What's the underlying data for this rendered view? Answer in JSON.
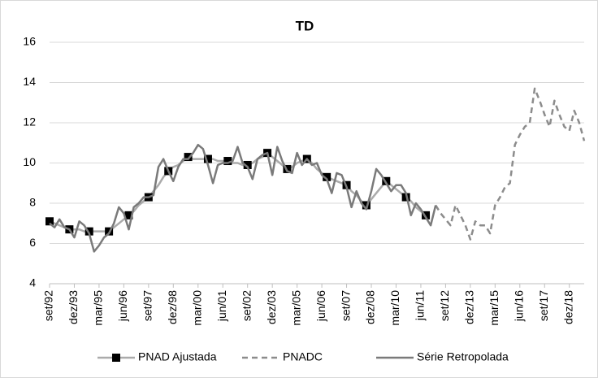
{
  "chart_data": {
    "type": "line",
    "title": "TD",
    "categories": [
      "set/92",
      null,
      null,
      null,
      null,
      "dez/93",
      null,
      null,
      null,
      null,
      "mar/95",
      null,
      null,
      null,
      null,
      "jun/96",
      null,
      null,
      null,
      null,
      "set/97",
      null,
      null,
      null,
      null,
      "dez/98",
      null,
      null,
      null,
      null,
      "mar/00",
      null,
      null,
      null,
      null,
      "jun/01",
      null,
      null,
      null,
      null,
      "set/02",
      null,
      null,
      null,
      null,
      "dez/03",
      null,
      null,
      null,
      null,
      "mar/05",
      null,
      null,
      null,
      null,
      "jun/06",
      null,
      null,
      null,
      null,
      "set/07",
      null,
      null,
      null,
      null,
      "dez/08",
      null,
      null,
      null,
      null,
      "mar/10",
      null,
      null,
      null,
      null,
      "jun/11",
      null,
      null,
      null,
      null,
      "set/12",
      null,
      null,
      null,
      null,
      "dez/13",
      null,
      null,
      null,
      null,
      "mar/15",
      null,
      null,
      null,
      null,
      "jun/16",
      null,
      null,
      null,
      null,
      "set/17",
      null,
      null,
      null,
      null,
      "dez/18",
      null,
      null,
      null
    ],
    "series": [
      {
        "name": "PNAD Ajustada",
        "color": "#ababab",
        "marker": "square",
        "marker_color": "#000000",
        "values": [
          7.1,
          7.0,
          6.9,
          6.8,
          6.7,
          6.7,
          6.7,
          6.6,
          6.6,
          6.6,
          6.6,
          6.6,
          6.6,
          6.8,
          7.0,
          7.2,
          7.4,
          7.6,
          7.9,
          8.1,
          8.3,
          8.6,
          8.9,
          9.3,
          9.6,
          9.8,
          9.9,
          10.1,
          10.3,
          10.2,
          10.2,
          10.2,
          10.2,
          10.2,
          10.1,
          10.1,
          10.1,
          10.0,
          10.0,
          9.9,
          9.9,
          10.0,
          10.2,
          10.3,
          10.5,
          10.3,
          10.1,
          9.9,
          9.7,
          9.8,
          10.0,
          10.1,
          10.2,
          10.0,
          9.7,
          9.5,
          9.3,
          9.2,
          9.1,
          9.0,
          8.9,
          8.6,
          8.4,
          8.1,
          7.9,
          8.2,
          8.5,
          8.8,
          9.1,
          8.9,
          8.7,
          8.5,
          8.3,
          8.1,
          7.8,
          7.6,
          7.4,
          null,
          null,
          null,
          null,
          null,
          null,
          null,
          null,
          null,
          null,
          null,
          null,
          null,
          null,
          null,
          null,
          null,
          null,
          null,
          null,
          null,
          null,
          null,
          null,
          null,
          null,
          null,
          null,
          null,
          null,
          null,
          null
        ]
      },
      {
        "name": "PNADC",
        "color": "#8c8c8c",
        "dash": true,
        "values": [
          null,
          null,
          null,
          null,
          null,
          null,
          null,
          null,
          null,
          null,
          null,
          null,
          null,
          null,
          null,
          null,
          null,
          null,
          null,
          null,
          null,
          null,
          null,
          null,
          null,
          null,
          null,
          null,
          null,
          null,
          null,
          null,
          null,
          null,
          null,
          null,
          null,
          null,
          null,
          null,
          null,
          null,
          null,
          null,
          null,
          null,
          null,
          null,
          null,
          null,
          null,
          null,
          null,
          null,
          null,
          null,
          null,
          null,
          null,
          null,
          null,
          null,
          null,
          null,
          null,
          null,
          null,
          null,
          null,
          null,
          null,
          null,
          null,
          null,
          null,
          null,
          null,
          null,
          7.9,
          7.5,
          7.2,
          6.9,
          7.9,
          7.4,
          6.9,
          6.2,
          7.1,
          6.9,
          6.9,
          6.5,
          7.9,
          8.3,
          8.8,
          9.0,
          10.9,
          11.4,
          11.8,
          12.0,
          13.7,
          13.1,
          12.4,
          11.8,
          13.1,
          12.4,
          11.8,
          11.6,
          12.6,
          12.0,
          11.1
        ]
      },
      {
        "name": "Série Retropolada",
        "color": "#7a7a7a",
        "values": [
          7.0,
          6.8,
          7.2,
          6.8,
          6.7,
          6.3,
          7.1,
          6.9,
          6.5,
          5.6,
          5.9,
          6.3,
          6.5,
          7.0,
          7.8,
          7.5,
          6.7,
          7.8,
          8.0,
          8.3,
          8.3,
          8.4,
          9.8,
          10.2,
          9.6,
          9.1,
          9.8,
          10.2,
          10.2,
          10.5,
          10.9,
          10.7,
          9.9,
          9.0,
          9.9,
          10.0,
          10.0,
          10.1,
          10.8,
          10.0,
          9.8,
          9.2,
          10.2,
          10.4,
          10.5,
          9.4,
          10.8,
          10.1,
          9.6,
          9.5,
          10.5,
          9.9,
          10.2,
          9.9,
          10.0,
          9.4,
          9.2,
          8.5,
          9.5,
          9.4,
          8.8,
          7.8,
          8.6,
          8.0,
          7.7,
          8.6,
          9.7,
          9.4,
          9.0,
          8.6,
          8.9,
          8.9,
          8.5,
          7.4,
          8.0,
          7.7,
          7.3,
          6.9,
          7.9,
          null,
          null,
          null,
          null,
          null,
          null,
          null,
          null,
          null,
          null,
          null,
          null,
          null,
          null,
          null,
          null,
          null,
          null,
          null,
          null,
          null,
          null,
          null,
          null,
          null,
          null,
          null,
          null,
          null,
          null
        ]
      }
    ],
    "ylim": [
      4,
      16
    ],
    "yticks": [
      4,
      6,
      8,
      10,
      12,
      14,
      16
    ],
    "grid": true,
    "legend": "bottom"
  }
}
